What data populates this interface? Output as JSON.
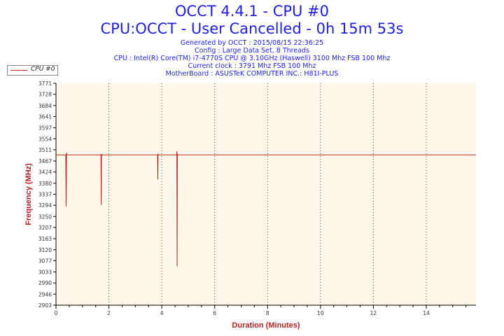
{
  "header": {
    "title_line1": "OCCT 4.4.1 - CPU #0",
    "title_line2": "CPU:OCCT - User Cancelled - 0h 15m 53s",
    "info": [
      "Generated by OCCT : 2015/08/15 22:36:25",
      "Config : Large Data Set, 8 Threads",
      "CPU : Intel(R) Core(TM) i7-4770S CPU @ 3.10GHz (Haswell) 3100 Mhz FSB 100 Mhz",
      "Current clock : 3791 Mhz FSB 100 Mhz",
      "MotherBoard : ASUSTeK COMPUTER INC.: H81I-PLUS"
    ]
  },
  "legend": {
    "label": "CPU #0",
    "position": "top-left"
  },
  "colors": {
    "plot_background": "#fdf8e9",
    "series": "#b22222",
    "title": "#1e1ee0",
    "axis_title": "#b22222"
  },
  "chart_data": {
    "type": "line",
    "xlabel": "Duration (Minutes)",
    "ylabel": "Frequency (MHz)",
    "xlim": [
      0,
      15.88
    ],
    "ylim": [
      2903,
      3771
    ],
    "x_ticks": [
      0,
      2,
      4,
      6,
      8,
      10,
      12,
      14
    ],
    "y_ticks": [
      2903,
      2946,
      2990,
      3033,
      3077,
      3120,
      3163,
      3207,
      3250,
      3294,
      3337,
      3380,
      3424,
      3467,
      3511,
      3554,
      3597,
      3641,
      3684,
      3728,
      3771
    ],
    "grid": "vertical dotted lines at major x ticks",
    "series": [
      {
        "name": "CPU #0",
        "baseline": 3491,
        "x": [
          0,
          0.37,
          0.38,
          0.39,
          0.4,
          0.41,
          1.7,
          1.71,
          1.72,
          1.73,
          3.84,
          3.85,
          3.86,
          3.87,
          4.56,
          4.57,
          4.58,
          4.59,
          4.6,
          15.88
        ],
        "y": [
          3491,
          3491,
          3290,
          3420,
          3500,
          3491,
          3491,
          3295,
          3495,
          3491,
          3491,
          3395,
          3495,
          3491,
          3491,
          3505,
          3055,
          3495,
          3491,
          3491
        ]
      }
    ]
  }
}
